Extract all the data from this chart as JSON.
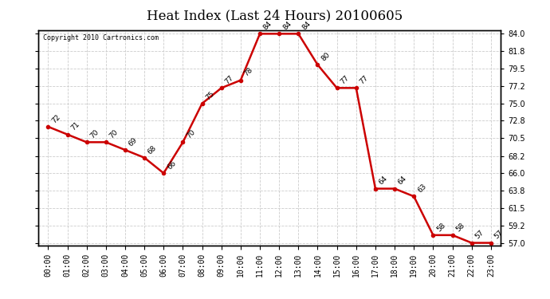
{
  "title": "Heat Index (Last 24 Hours) 20100605",
  "copyright": "Copyright 2010 Cartronics.com",
  "hours": [
    "00:00",
    "01:00",
    "02:00",
    "03:00",
    "04:00",
    "05:00",
    "06:00",
    "07:00",
    "08:00",
    "09:00",
    "10:00",
    "11:00",
    "12:00",
    "13:00",
    "14:00",
    "15:00",
    "16:00",
    "17:00",
    "18:00",
    "19:00",
    "20:00",
    "21:00",
    "22:00",
    "23:00"
  ],
  "values": [
    72,
    71,
    70,
    70,
    69,
    68,
    66,
    70,
    75,
    77,
    78,
    84,
    84,
    84,
    80,
    77,
    77,
    64,
    64,
    63,
    58,
    58,
    57,
    57
  ],
  "ylim_min": 57.0,
  "ylim_max": 84.0,
  "yticks": [
    57.0,
    59.2,
    61.5,
    63.8,
    66.0,
    68.2,
    70.5,
    72.8,
    75.0,
    77.2,
    79.5,
    81.8,
    84.0
  ],
  "line_color": "#cc0000",
  "marker": "o",
  "marker_color": "#cc0000",
  "marker_size": 3,
  "bg_color": "#ffffff",
  "grid_color": "#cccccc",
  "title_fontsize": 12,
  "label_fontsize": 7,
  "annotation_fontsize": 6.5,
  "copyright_fontsize": 6
}
